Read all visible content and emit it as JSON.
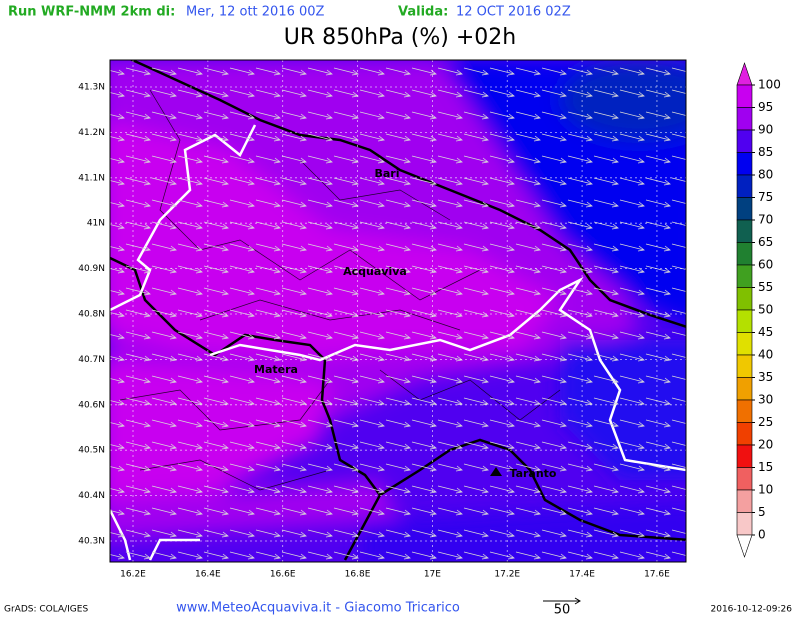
{
  "header": {
    "run_label": "Run WRF-NMM 2km di:",
    "run_date": "Mer, 12 ott 2016 00Z",
    "valid_label": "Valida:",
    "valid_date": "12 OCT 2016 02Z",
    "title": "UR 850hPa (%) +02h"
  },
  "map": {
    "lat_labels": [
      "41.3N",
      "41.2N",
      "41.1N",
      "41N",
      "40.9N",
      "40.8N",
      "40.7N",
      "40.6N",
      "40.5N",
      "40.4N",
      "40.3N"
    ],
    "lon_labels": [
      "16.2E",
      "16.4E",
      "16.6E",
      "16.8E",
      "17E",
      "17.2E",
      "17.4E",
      "17.6E"
    ],
    "cities": [
      "Bari",
      "Acquaviva",
      "Matera",
      "Taranto"
    ]
  },
  "colorbar": {
    "levels": [
      100,
      95,
      90,
      85,
      80,
      75,
      70,
      65,
      60,
      55,
      50,
      45,
      40,
      35,
      30,
      25,
      20,
      15,
      10,
      5,
      0
    ],
    "colors": [
      "#e020e0",
      "#c800f0",
      "#a000f0",
      "#5000f0",
      "#0000f0",
      "#0020c0",
      "#004080",
      "#106050",
      "#208030",
      "#40a020",
      "#80c000",
      "#b4e000",
      "#e0e000",
      "#f0c800",
      "#f0a000",
      "#f07000",
      "#f04000",
      "#f01010",
      "#f06060",
      "#f4a0a0",
      "#f8c8c8",
      "#ffffff"
    ]
  },
  "footer": {
    "software": "GrADS: COLA/IGES",
    "credits": "www.MeteoAcquaviva.it - Giacomo Tricarico",
    "wind_scale": "50",
    "timestamp": "2016-10-12-09:26"
  }
}
